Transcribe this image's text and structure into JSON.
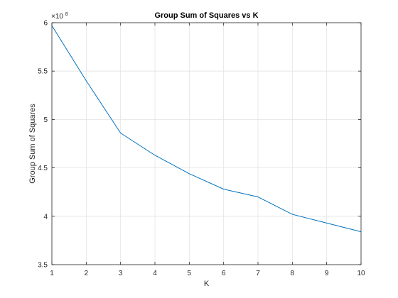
{
  "chart_data": {
    "type": "line",
    "title": "Group Sum of Squares vs K",
    "xlabel": "K",
    "ylabel": "Group Sum of Squares",
    "exponent_base": "×10",
    "exponent_power": "8",
    "grid": true,
    "xlim": [
      1,
      10
    ],
    "ylim": [
      3.5,
      6
    ],
    "x_ticks": [
      "1",
      "2",
      "3",
      "4",
      "5",
      "6",
      "7",
      "8",
      "9",
      "10"
    ],
    "y_ticks": [
      "3.5",
      "4",
      "4.5",
      "5",
      "5.5",
      "6"
    ],
    "series": [
      {
        "name": "Group Sum of Squares",
        "color": "#0072bd",
        "x": [
          1,
          2,
          3,
          4,
          5,
          6,
          7,
          8,
          9,
          10
        ],
        "y": [
          5.97,
          5.4,
          4.86,
          4.63,
          4.44,
          4.28,
          4.2,
          4.02,
          3.93,
          3.84
        ]
      }
    ]
  }
}
